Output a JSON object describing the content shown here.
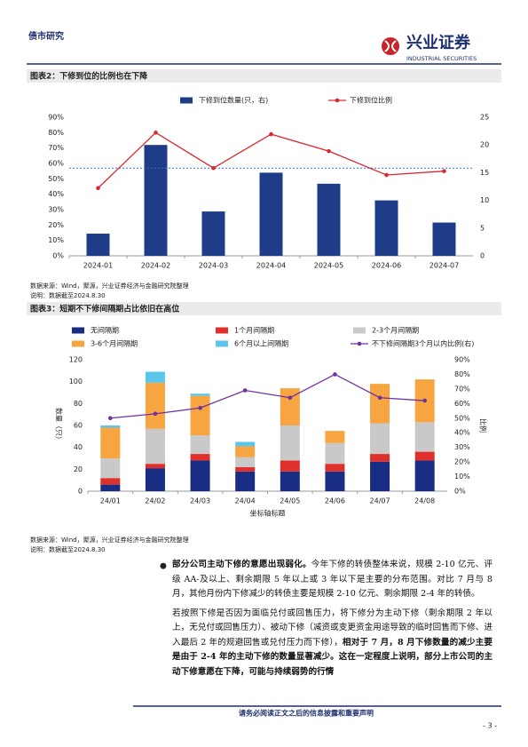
{
  "header": {
    "section": "债市研究",
    "logo_cn": "兴业证券",
    "logo_en": "INDUSTRIAL SECURITIES"
  },
  "chart_data": [
    {
      "type": "bar",
      "title": "图表2：下修到位的比例也在下降",
      "categories": [
        "2024-01",
        "2024-02",
        "2024-03",
        "2024-04",
        "2024-05",
        "2024-06",
        "2024-07"
      ],
      "series": [
        {
          "name": "下修到位数量(只，右)",
          "type": "bar",
          "axis": "y2",
          "color": "#1f3c88",
          "values": [
            4,
            20,
            8,
            15,
            13,
            10,
            6
          ]
        },
        {
          "name": "下修到位比例",
          "type": "line",
          "color": "#d9282f",
          "values": [
            44,
            80,
            57,
            79,
            68,
            52.5,
            55
          ]
        }
      ],
      "ref_line": 57,
      "ref_color": "#2e6fc2",
      "ylim": [
        0,
        90
      ],
      "yticks": [
        {
          "value": 0,
          "label": "0%"
        },
        {
          "value": 10,
          "label": "10%"
        },
        {
          "value": 20,
          "label": "20%"
        },
        {
          "value": 30,
          "label": "30%"
        },
        {
          "value": 40,
          "label": "40%"
        },
        {
          "value": 50,
          "label": "50%"
        },
        {
          "value": 60,
          "label": "60%"
        },
        {
          "value": 70,
          "label": "70%"
        },
        {
          "value": 80,
          "label": "80%"
        },
        {
          "value": 90,
          "label": "90%"
        }
      ],
      "y2lim": [
        0,
        25
      ],
      "y2ticks": [
        0,
        5,
        10,
        15,
        20,
        25
      ],
      "source": "数据来源：Wind，聚源，兴业证券经济与金融研究院整理",
      "note": "说明：数据截至2024.8.30"
    },
    {
      "type": "bar",
      "stacked": true,
      "title": "图表3：短期不下修间隔期占比依旧在高位",
      "categories": [
        "24/01",
        "24/02",
        "24/03",
        "24/04",
        "24/05",
        "24/06",
        "24/07",
        "24/08"
      ],
      "series": [
        {
          "name": "无间隔期",
          "type": "bar",
          "color": "#1a2d85",
          "values": [
            6,
            21,
            28,
            18,
            18,
            18,
            27,
            28
          ]
        },
        {
          "name": "1个月间隔期",
          "type": "bar",
          "color": "#e0302a",
          "values": [
            6,
            4,
            6,
            4,
            10,
            7,
            7,
            8
          ]
        },
        {
          "name": "2-3个月间隔期",
          "type": "bar",
          "color": "#c9c9c9",
          "values": [
            18,
            32,
            17,
            9,
            32,
            19,
            28,
            27
          ]
        },
        {
          "name": "3-6个月间隔期",
          "type": "bar",
          "color": "#f7a541",
          "values": [
            28,
            42,
            36,
            10,
            34,
            11,
            36,
            39
          ]
        },
        {
          "name": "6个月以上间隔期",
          "type": "bar",
          "color": "#5bc6ea",
          "values": [
            2,
            10,
            2,
            4,
            0,
            0,
            0,
            0
          ]
        },
        {
          "name": "不下修间隔期3个月以内比例(右)",
          "type": "line",
          "axis": "y2",
          "color": "#7030a0",
          "values": [
            50,
            53,
            57,
            69,
            64,
            80,
            64,
            62
          ]
        }
      ],
      "ylim": [
        0,
        120
      ],
      "yticks": [
        0,
        20,
        40,
        60,
        80,
        100,
        120
      ],
      "y2lim": [
        0,
        90
      ],
      "y2ticks": [
        {
          "value": 0,
          "label": "0%"
        },
        {
          "value": 10,
          "label": "10%"
        },
        {
          "value": 20,
          "label": "20%"
        },
        {
          "value": 30,
          "label": "30%"
        },
        {
          "value": 40,
          "label": "40%"
        },
        {
          "value": 50,
          "label": "50%"
        },
        {
          "value": 60,
          "label": "60%"
        },
        {
          "value": 70,
          "label": "70%"
        },
        {
          "value": 80,
          "label": "80%"
        },
        {
          "value": 90,
          "label": "90%"
        }
      ],
      "y_label": "数量（只）",
      "y2_label": "比例",
      "x_label": "坐标轴标题",
      "source": "数据来源：Wind，聚源，兴业证券经济与金融研究院整理",
      "note": "说明：数据截至2024.8.30"
    }
  ],
  "body": {
    "paragraphs": [
      {
        "runs": [
          {
            "text": "部分公司主动下修的意愿出现弱化。",
            "bold": true
          },
          {
            "text": "今年下修的转债整体来说，规模 2-10 亿元、评级 AA-及以上、剩余期限 5 年以上或 3 年以下是主要的分布范围。对比 7 月与 8 月，其他月份内下修减少的转债主要是规模 2-10 亿元、剩余期限 2-4 年的转债。",
            "bold": false
          }
        ]
      },
      {
        "runs": [
          {
            "text": "若按照下修是否因为面临兑付或回售压力，将下修分为主动下修（剩余期限 2 年以上，无兑付或回售压力）、被动下修（减资或变更资金用途导致的临时回售而下修、进入最后 2 年的规避回售或兑付压力而下修），",
            "bold": false
          },
          {
            "text": "相对于 7 月，8 月下修数量的减少主要是由于 2-4 年的主动下修的数量显著减少。这在一定程度上说明，部分上市公司的主动下修意愿在下降，可能与持续弱势的行情",
            "bold": true
          }
        ]
      }
    ]
  },
  "footer": {
    "disclaimer": "请务必阅读正文之后的信息披露和重要声明",
    "page": "- 3 -"
  }
}
